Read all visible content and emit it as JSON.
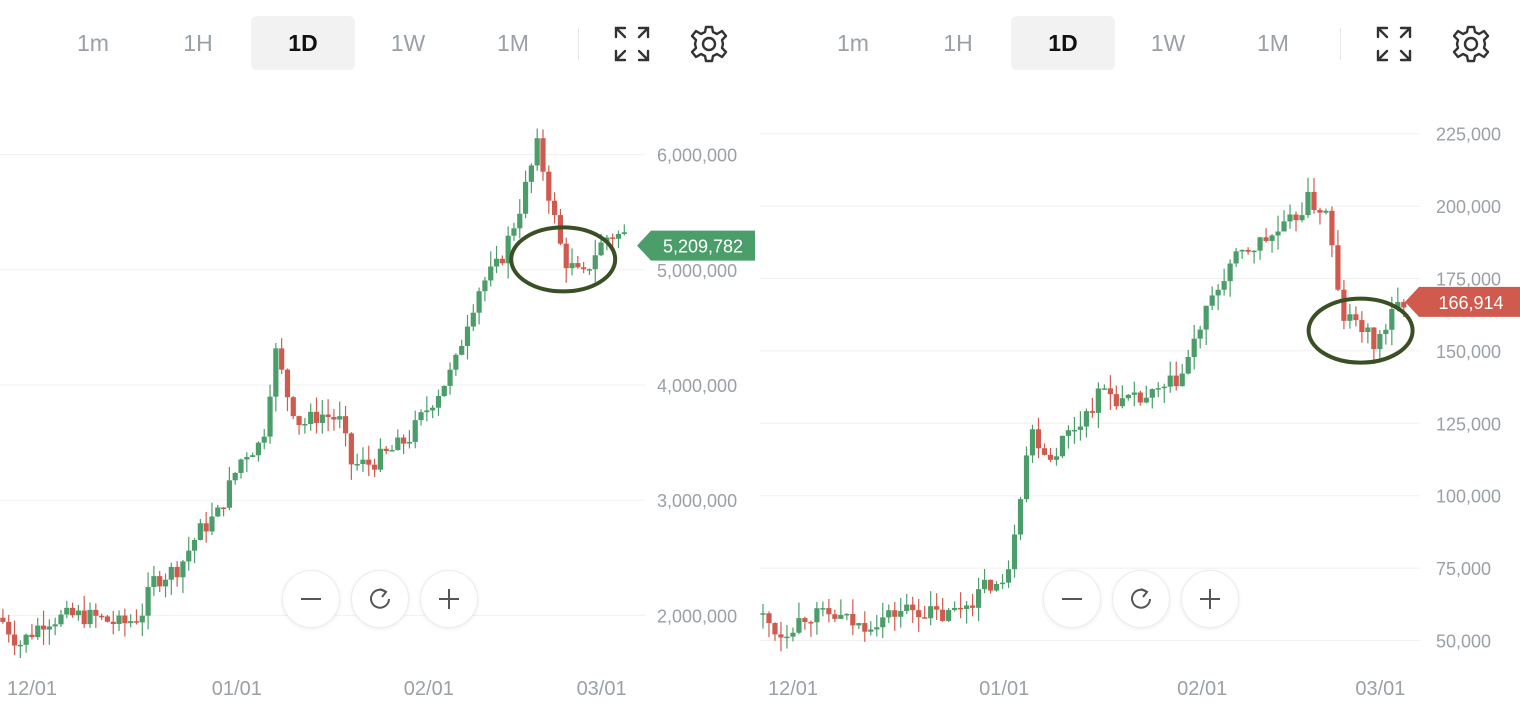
{
  "timeframes": [
    "1m",
    "1H",
    "1D",
    "1W",
    "1M"
  ],
  "active_timeframe": "1D",
  "icons": {
    "fullscreen": "expand-arrows-icon",
    "settings": "gear-icon",
    "zoom_out": "minus-icon",
    "reset": "refresh-icon",
    "zoom_in": "plus-icon"
  },
  "colors": {
    "up": "#4b9e6a",
    "down": "#d05a4e",
    "annotation": "#3a4f23",
    "grid": "#f0f0f0",
    "axis_text": "#9aa0a6"
  },
  "chart_data": [
    {
      "type": "candlestick",
      "x_ticks": [
        "12/01",
        "01/01",
        "02/01",
        "03/01"
      ],
      "y_ticks": [
        "2,000,000",
        "3,000,000",
        "4,000,000",
        "5,000,000",
        "6,000,000"
      ],
      "ylim": [
        1700000,
        6300000
      ],
      "last_price": 5209782,
      "last_price_label": "5,209,782",
      "last_price_direction": "up",
      "x_domain": [
        0,
        100
      ],
      "tick_positions": [
        5,
        37,
        67,
        94
      ],
      "keypoints": [
        [
          0,
          1980000
        ],
        [
          3,
          1750000
        ],
        [
          7,
          1960000
        ],
        [
          12,
          2000000
        ],
        [
          15,
          1980000
        ],
        [
          19,
          1920000
        ],
        [
          22,
          2000000
        ],
        [
          24,
          2300000
        ],
        [
          28,
          2420000
        ],
        [
          31,
          2720000
        ],
        [
          34,
          2880000
        ],
        [
          38,
          3400000
        ],
        [
          41,
          3500000
        ],
        [
          43,
          4300000
        ],
        [
          45,
          3900000
        ],
        [
          47,
          3650000
        ],
        [
          50,
          3750000
        ],
        [
          53,
          3700000
        ],
        [
          55,
          3300000
        ],
        [
          58,
          3320000
        ],
        [
          61,
          3420000
        ],
        [
          64,
          3550000
        ],
        [
          67,
          3820000
        ],
        [
          71,
          4150000
        ],
        [
          73,
          4560000
        ],
        [
          75,
          4860000
        ],
        [
          78,
          5050000
        ],
        [
          81,
          5500000
        ],
        [
          84,
          6080000
        ],
        [
          86,
          5600000
        ],
        [
          88,
          5100000
        ],
        [
          91,
          4920000
        ],
        [
          93,
          5150000
        ],
        [
          95,
          5300000
        ]
      ],
      "circle": {
        "x": 88,
        "y": 5090000
      }
    },
    {
      "type": "candlestick",
      "x_ticks": [
        "12/01",
        "01/01",
        "02/01",
        "03/01"
      ],
      "y_ticks": [
        "50,000",
        "75,000",
        "100,000",
        "125,000",
        "150,000",
        "175,000",
        "200,000",
        "225,000"
      ],
      "ylim": [
        45000,
        228000
      ],
      "last_price": 166914,
      "last_price_label": "166,914",
      "last_price_direction": "down",
      "x_domain": [
        0,
        100
      ],
      "tick_positions": [
        5,
        37,
        67,
        94
      ],
      "keypoints": [
        [
          0,
          59000
        ],
        [
          3,
          52000
        ],
        [
          7,
          59000
        ],
        [
          12,
          58000
        ],
        [
          15,
          55000
        ],
        [
          19,
          58000
        ],
        [
          22,
          61000
        ],
        [
          25,
          60000
        ],
        [
          28,
          58000
        ],
        [
          32,
          64000
        ],
        [
          35,
          70000
        ],
        [
          37,
          68000
        ],
        [
          39,
          95000
        ],
        [
          41,
          123000
        ],
        [
          44,
          113000
        ],
        [
          46,
          120000
        ],
        [
          49,
          127000
        ],
        [
          52,
          137000
        ],
        [
          55,
          132000
        ],
        [
          58,
          133000
        ],
        [
          61,
          136000
        ],
        [
          64,
          142000
        ],
        [
          67,
          160000
        ],
        [
          71,
          179000
        ],
        [
          74,
          185000
        ],
        [
          77,
          189000
        ],
        [
          80,
          193000
        ],
        [
          83,
          202000
        ],
        [
          86,
          197000
        ],
        [
          88,
          162000
        ],
        [
          91,
          159000
        ],
        [
          93,
          152000
        ],
        [
          95,
          159000
        ],
        [
          97,
          167000
        ]
      ],
      "circle": {
        "x": 91,
        "y": 157000
      }
    }
  ]
}
